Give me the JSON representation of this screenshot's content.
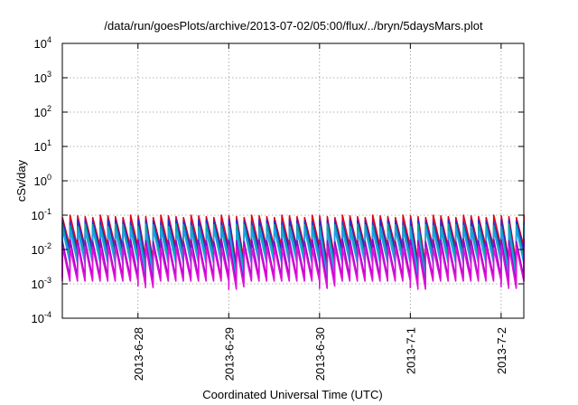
{
  "chart_data": {
    "type": "line",
    "title": "/data/run/goesPlots/archive/2013-07-02/05:00/flux/../bryn/5daysMars.plot",
    "xlabel": "Coordinated Universal Time (UTC)",
    "ylabel": "cSv/day",
    "y_scale": "log",
    "ylim": [
      0.0001,
      10000
    ],
    "xlim": [
      "2013-06-27 04:00",
      "2013-07-02 06:00"
    ],
    "y_ticks": [
      {
        "value": 0.0001,
        "base": "10",
        "exp": "-4"
      },
      {
        "value": 0.001,
        "base": "10",
        "exp": "-3"
      },
      {
        "value": 0.01,
        "base": "10",
        "exp": "-2"
      },
      {
        "value": 0.1,
        "base": "10",
        "exp": "-1"
      },
      {
        "value": 1,
        "base": "10",
        "exp": "0"
      },
      {
        "value": 10,
        "base": "10",
        "exp": "1"
      },
      {
        "value": 100,
        "base": "10",
        "exp": "2"
      },
      {
        "value": 1000,
        "base": "10",
        "exp": "3"
      },
      {
        "value": 10000,
        "base": "10",
        "exp": "4"
      }
    ],
    "x_ticks": [
      {
        "value": "2013-06-28 00:00",
        "label": "2013-6-28"
      },
      {
        "value": "2013-06-29 00:00",
        "label": "2013-6-29"
      },
      {
        "value": "2013-06-30 00:00",
        "label": "2013-6-30"
      },
      {
        "value": "2013-07-01 00:00",
        "label": "2013-7-1"
      },
      {
        "value": "2013-07-02 00:00",
        "label": "2013-7-2"
      }
    ],
    "grid": true,
    "legend": "none",
    "pattern": {
      "cycle_hours": 2,
      "note": "sawtooth"
    },
    "series": [
      {
        "color": "#e0001a",
        "peak": 0.1,
        "trough": 0.012,
        "deep_trough": 0.0035
      },
      {
        "color": "#2a2ad0",
        "peak": 0.075,
        "trough": 0.009,
        "deep_trough": 0.0025
      },
      {
        "color": "#00a89a",
        "peak": 0.055,
        "trough": 0.006,
        "deep_trough": 0.0018
      },
      {
        "color": "#1ea0e8",
        "peak": 0.04,
        "trough": 0.004,
        "deep_trough": 0.0012
      },
      {
        "color": "#9a00c8",
        "peak": 0.02,
        "trough": 0.0015,
        "deep_trough": 0.0009
      },
      {
        "color": "#e010d8",
        "peak": 0.013,
        "trough": 0.0012,
        "deep_trough": 0.0007
      }
    ]
  }
}
